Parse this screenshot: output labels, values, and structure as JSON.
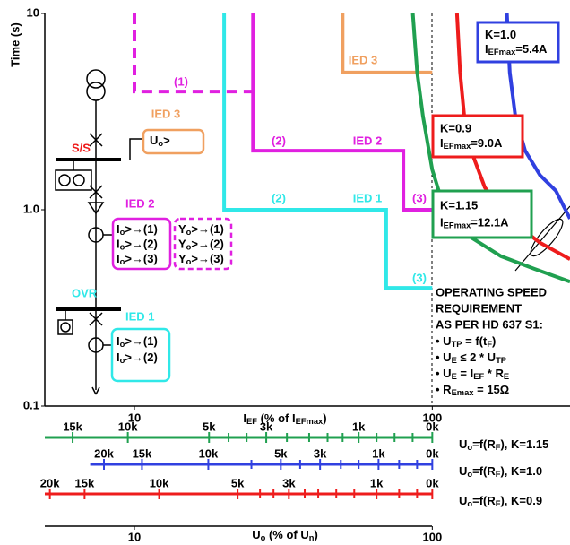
{
  "chart_data": {
    "type": "line",
    "xlog": true,
    "ylog": true,
    "xlabel": [
      "I",
      "EF",
      " (% of I",
      "EFmax",
      ")"
    ],
    "ylabel": "Time (s)",
    "xlim": [
      5,
      290
    ],
    "ylim": [
      0.1,
      10
    ],
    "xticks": [
      10,
      100
    ],
    "yticks": [
      0.1,
      {
        "value": 1,
        "label": "1.0"
      },
      10
    ],
    "ref_line": 100,
    "series": [
      {
        "name": "IED 3",
        "color": "#f0a060",
        "x": [
          50,
          50,
          100
        ],
        "values": [
          10,
          5,
          5
        ]
      },
      {
        "name": "IED 2",
        "color": "#e020e0",
        "x": [
          25,
          25,
          80,
          80,
          100
        ],
        "values": [
          10,
          2,
          2,
          1,
          1
        ]
      },
      {
        "color": "#e020e0",
        "dashed": true,
        "x": [
          10,
          10,
          25
        ],
        "values": [
          10,
          4,
          4
        ]
      },
      {
        "name": "IED 1",
        "color": "#30e8e8",
        "x": [
          20,
          20,
          70,
          70,
          100
        ],
        "values": [
          10,
          1,
          1,
          0.4,
          0.4
        ]
      },
      {
        "name": "K=1.15",
        "color": "#20a050",
        "imax": [
          "I",
          "EFmax",
          "=12.1A"
        ],
        "x": [
          86,
          89,
          93,
          100,
          110,
          130,
          170,
          220,
          290
        ],
        "values": [
          10,
          5,
          3,
          1.6,
          1.0,
          0.75,
          0.58,
          0.5,
          0.43
        ]
      },
      {
        "name": "K=0.9",
        "color": "#ee1c1c",
        "imax": [
          "I",
          "EFmax",
          "=9.0A"
        ],
        "x": [
          121,
          124,
          128,
          135,
          150,
          180,
          230,
          290
        ],
        "values": [
          10,
          5,
          3,
          2,
          1.3,
          0.9,
          0.68,
          0.56
        ]
      },
      {
        "name": "K=1.0",
        "color": "#3040e0",
        "imax": [
          "I",
          "EFmax",
          "=5.4A"
        ],
        "x": [
          178,
          182,
          190,
          205,
          230,
          260,
          290
        ],
        "values": [
          10,
          5,
          3,
          2,
          1.5,
          1.25,
          0.9
        ]
      }
    ],
    "annotations": [
      {
        "text": "(1)",
        "color": "#e020e0"
      },
      {
        "text": "(2)",
        "color": "#e020e0"
      },
      {
        "text": "(3)",
        "color": "#e020e0"
      },
      {
        "text": "(2)",
        "color": "#30e8e8"
      },
      {
        "text": "(3)",
        "color": "#30e8e8"
      }
    ],
    "rf_scales": [
      {
        "label": [
          "U",
          "o",
          "=f(R",
          "F",
          "), K=1.15"
        ],
        "color": "#20a050",
        "start": 5,
        "ticks": [
          {
            "value": 6.2,
            "label": "15k"
          },
          {
            "value": 9.5,
            "label": "10k"
          },
          {
            "value": 17.8,
            "label": "5k"
          },
          {
            "value": 27.7,
            "label": "3k"
          },
          {
            "value": 56.6,
            "label": "1k"
          },
          {
            "value": 100,
            "label": "0k"
          }
        ],
        "minor": [
          20.7,
          23.8,
          32.5,
          38.6,
          44.5,
          50,
          65,
          74.7,
          85.9
        ]
      },
      {
        "label": [
          "U",
          "o",
          "=f(R",
          "F",
          "), K=1.0"
        ],
        "color": "#3040e0",
        "start": 7.1,
        "ticks": [
          {
            "value": 7.9,
            "label": "20k"
          },
          {
            "value": 10.6,
            "label": "15k"
          },
          {
            "value": 17.7,
            "label": "10k"
          },
          {
            "value": 31,
            "label": "5k"
          },
          {
            "value": 42,
            "label": "3k"
          },
          {
            "value": 66,
            "label": "1k"
          },
          {
            "value": 100,
            "label": "0k"
          }
        ],
        "minor": [
          24.7,
          36,
          49.3,
          56.6,
          77.4,
          88.9
        ]
      },
      {
        "label": [
          "U",
          "o",
          "=f(R",
          "F",
          "), K=0.9"
        ],
        "color": "#ee1c1c",
        "start": 5,
        "ticks": [
          {
            "value": 5.2,
            "label": "20k"
          },
          {
            "value": 6.8,
            "label": "15k"
          },
          {
            "value": 12.1,
            "label": "10k"
          },
          {
            "value": 22.2,
            "label": "5k"
          },
          {
            "value": 33,
            "label": "3k"
          },
          {
            "value": 65,
            "label": "1k"
          },
          {
            "value": 100,
            "label": "0k"
          }
        ],
        "minor": [
          26.4,
          29.3,
          37.3,
          41.4,
          47.6,
          54.7,
          77.4,
          88.9
        ]
      }
    ],
    "x2label": [
      "U",
      "o",
      " (% of U",
      "n",
      ")"
    ],
    "x2ticks": [
      10,
      100
    ]
  },
  "requirement": {
    "lines": [
      "OPERATING SPEED",
      "REQUIREMENT",
      "AS PER HD 637 S1:"
    ],
    "bullets": [
      [
        "• U",
        "TP",
        " = f(t",
        "F",
        ")"
      ],
      [
        "• U",
        "E",
        " ≤ 2 * U",
        "TP"
      ],
      [
        "• U",
        "E",
        " = I",
        "EF",
        " * R",
        "E"
      ],
      [
        "• R",
        "Emax",
        " = 15Ω"
      ]
    ]
  },
  "diagram": {
    "ss": "S/S",
    "ied3": "IED 3",
    "ied3_func": [
      "U",
      "o",
      ">"
    ],
    "ied2": "IED 2",
    "ied2_funcs": [
      [
        "I",
        "o",
        ">→(1)"
      ],
      [
        "I",
        "o",
        ">→(2)"
      ],
      [
        "I",
        "o",
        ">→(3)"
      ]
    ],
    "ied2_dir": [
      [
        "Y",
        "o",
        ">→(1)"
      ],
      [
        "Y",
        "o",
        ">→(2)"
      ],
      [
        "Y",
        "o",
        ">→(3)"
      ]
    ],
    "ovr": "OVR",
    "ied1": "IED 1",
    "ied1_funcs": [
      [
        "I",
        "o",
        ">→(1)"
      ],
      [
        "I",
        "o",
        ">→(2)"
      ]
    ]
  }
}
